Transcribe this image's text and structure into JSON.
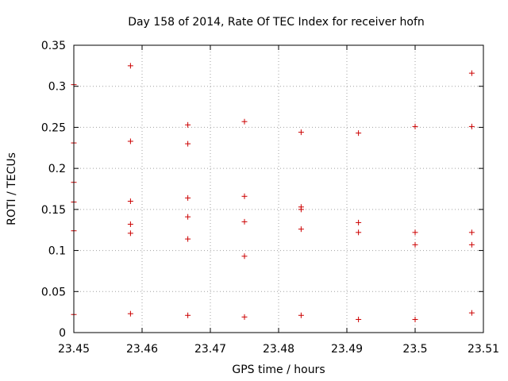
{
  "chart_data": {
    "type": "scatter",
    "title": "Day 158 of 2014, Rate Of TEC Index for receiver hofn",
    "xlabel": "GPS time / hours",
    "ylabel": "ROTI / TECUs",
    "xlim": [
      23.45,
      23.51
    ],
    "ylim": [
      0,
      0.35
    ],
    "x_ticks": [
      23.45,
      23.46,
      23.47,
      23.48,
      23.49,
      23.5,
      23.51
    ],
    "x_tick_labels": [
      "23.45",
      "23.46",
      "23.47",
      "23.48",
      "23.49",
      "23.5",
      "23.51"
    ],
    "y_ticks": [
      0,
      0.05,
      0.1,
      0.15,
      0.2,
      0.25,
      0.3,
      0.35
    ],
    "y_tick_labels": [
      "0",
      "0.05",
      "0.1",
      "0.15",
      "0.2",
      "0.25",
      "0.3",
      "0.35"
    ],
    "grid": true,
    "marker": "+",
    "marker_color": "#cc0000",
    "grid_color": "#a0a0a0",
    "series": [
      {
        "name": "ROTI",
        "points": [
          [
            23.45,
            0.302
          ],
          [
            23.45,
            0.231
          ],
          [
            23.45,
            0.183
          ],
          [
            23.45,
            0.159
          ],
          [
            23.45,
            0.124
          ],
          [
            23.45,
            0.022
          ],
          [
            23.4583,
            0.325
          ],
          [
            23.4583,
            0.233
          ],
          [
            23.4583,
            0.16
          ],
          [
            23.4583,
            0.132
          ],
          [
            23.4583,
            0.121
          ],
          [
            23.4583,
            0.023
          ],
          [
            23.4667,
            0.253
          ],
          [
            23.4667,
            0.23
          ],
          [
            23.4667,
            0.164
          ],
          [
            23.4667,
            0.141
          ],
          [
            23.4667,
            0.114
          ],
          [
            23.4667,
            0.021
          ],
          [
            23.475,
            0.257
          ],
          [
            23.475,
            0.166
          ],
          [
            23.475,
            0.135
          ],
          [
            23.475,
            0.093
          ],
          [
            23.475,
            0.019
          ],
          [
            23.4833,
            0.244
          ],
          [
            23.4833,
            0.153
          ],
          [
            23.4833,
            0.15
          ],
          [
            23.4833,
            0.126
          ],
          [
            23.4833,
            0.021
          ],
          [
            23.4917,
            0.243
          ],
          [
            23.4917,
            0.134
          ],
          [
            23.4917,
            0.122
          ],
          [
            23.4917,
            0.016
          ],
          [
            23.5,
            0.251
          ],
          [
            23.5,
            0.122
          ],
          [
            23.5,
            0.107
          ],
          [
            23.5,
            0.016
          ],
          [
            23.5083,
            0.316
          ],
          [
            23.5083,
            0.251
          ],
          [
            23.5083,
            0.122
          ],
          [
            23.5083,
            0.107
          ],
          [
            23.5083,
            0.024
          ]
        ]
      }
    ]
  }
}
